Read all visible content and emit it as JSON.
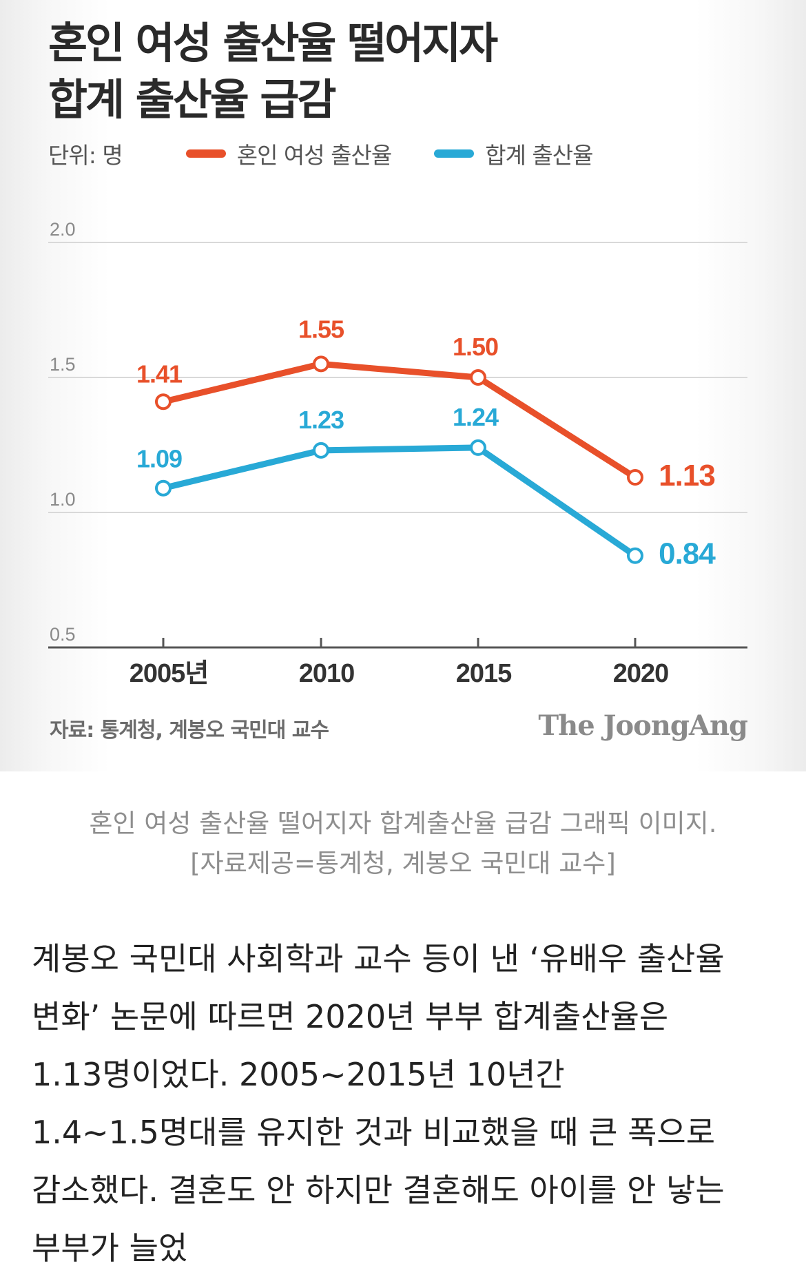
{
  "figure": {
    "title_line1": "혼인 여성 출산율 떨어지자",
    "title_line2": "합계 출산율 급감",
    "unit_label": "단위: 명",
    "source": "자료: 통계청, 계봉오 국민대 교수",
    "brand": "The JoongAng"
  },
  "chart_data": {
    "type": "line",
    "title": "혼인 여성 출산율 떨어지자 합계 출산율 급감",
    "categories": [
      "2005년",
      "2010",
      "2015",
      "2020"
    ],
    "yticks": [
      "2.0",
      "1.5",
      "1.0",
      "0.5"
    ],
    "ylim": [
      0.5,
      2.0
    ],
    "grid": true,
    "legend_position": "top",
    "series": [
      {
        "name": "혼인 여성 출산율",
        "color": "#e8502a",
        "values": [
          1.41,
          1.55,
          1.5,
          1.13
        ],
        "labels": [
          "1.41",
          "1.55",
          "1.50",
          "1.13"
        ]
      },
      {
        "name": "합계 출산율",
        "color": "#28a9d6",
        "values": [
          1.09,
          1.23,
          1.24,
          0.84
        ],
        "labels": [
          "1.09",
          "1.23",
          "1.24",
          "0.84"
        ]
      }
    ]
  },
  "caption": {
    "line1": "혼인 여성 출산율 떨어지자 합계출산율 급감 그래픽 이미지.",
    "line2": "[자료제공=통계청, 계봉오 국민대 교수]"
  },
  "article": {
    "paragraph": "계봉오 국민대 사회학과 교수 등이 낸 ‘유배우 출산율 변화’ 논문에 따르면 2020년 부부 합계출산율은 1.13명이었다. 2005~2015년 10년간 1.4~1.5명대를 유지한 것과 비교했을 때 큰 폭으로 감소했다. 결혼도 안 하지만 결혼해도 아이를 안 낳는 부부가 늘었"
  }
}
